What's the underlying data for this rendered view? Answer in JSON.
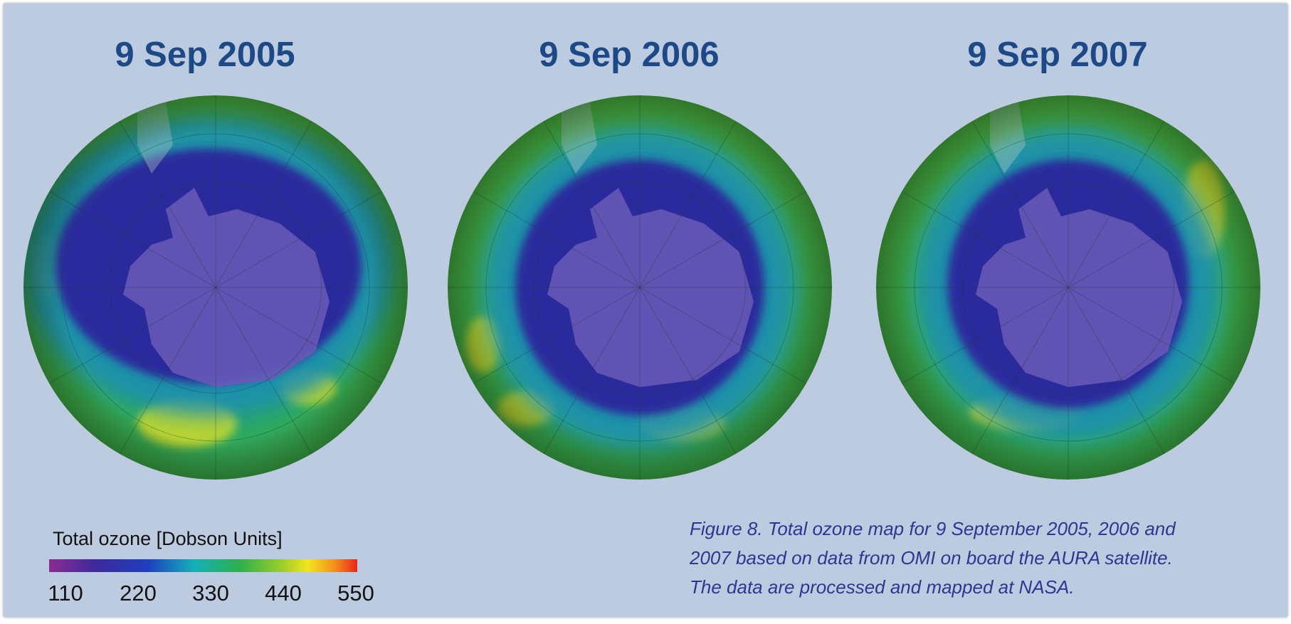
{
  "panels": [
    {
      "title": "9 Sep 2005"
    },
    {
      "title": "9 Sep 2006"
    },
    {
      "title": "9 Sep 2007"
    }
  ],
  "legend": {
    "title": "Total ozone [Dobson Units]",
    "ticks": [
      110,
      220,
      330,
      440,
      550
    ]
  },
  "caption": [
    "Figure 8. Total ozone map for 9 September 2005, 2006 and",
    "2007 based on data from OMI on board the AURA satellite.",
    "The data are processed and mapped at NASA."
  ]
}
